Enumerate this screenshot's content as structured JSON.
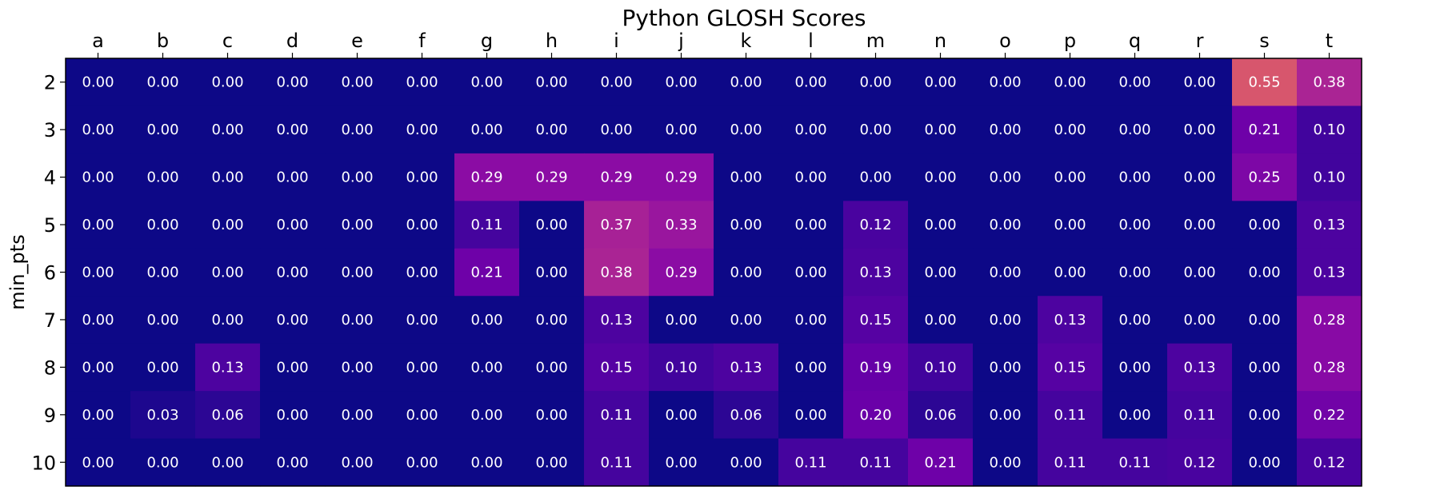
{
  "chart_data": {
    "type": "heatmap",
    "title": "Python GLOSH Scores",
    "xlabel": "",
    "ylabel": "min_pts",
    "x_ticks_position": "top",
    "columns": [
      "a",
      "b",
      "c",
      "d",
      "e",
      "f",
      "g",
      "h",
      "i",
      "j",
      "k",
      "l",
      "m",
      "n",
      "o",
      "p",
      "q",
      "r",
      "s",
      "t"
    ],
    "rows": [
      "2",
      "3",
      "4",
      "5",
      "6",
      "7",
      "8",
      "9",
      "10"
    ],
    "values": [
      [
        0.0,
        0.0,
        0.0,
        0.0,
        0.0,
        0.0,
        0.0,
        0.0,
        0.0,
        0.0,
        0.0,
        0.0,
        0.0,
        0.0,
        0.0,
        0.0,
        0.0,
        0.0,
        0.55,
        0.38
      ],
      [
        0.0,
        0.0,
        0.0,
        0.0,
        0.0,
        0.0,
        0.0,
        0.0,
        0.0,
        0.0,
        0.0,
        0.0,
        0.0,
        0.0,
        0.0,
        0.0,
        0.0,
        0.0,
        0.21,
        0.1
      ],
      [
        0.0,
        0.0,
        0.0,
        0.0,
        0.0,
        0.0,
        0.29,
        0.29,
        0.29,
        0.29,
        0.0,
        0.0,
        0.0,
        0.0,
        0.0,
        0.0,
        0.0,
        0.0,
        0.25,
        0.1
      ],
      [
        0.0,
        0.0,
        0.0,
        0.0,
        0.0,
        0.0,
        0.11,
        0.0,
        0.37,
        0.33,
        0.0,
        0.0,
        0.12,
        0.0,
        0.0,
        0.0,
        0.0,
        0.0,
        0.0,
        0.13
      ],
      [
        0.0,
        0.0,
        0.0,
        0.0,
        0.0,
        0.0,
        0.21,
        0.0,
        0.38,
        0.29,
        0.0,
        0.0,
        0.13,
        0.0,
        0.0,
        0.0,
        0.0,
        0.0,
        0.0,
        0.13
      ],
      [
        0.0,
        0.0,
        0.0,
        0.0,
        0.0,
        0.0,
        0.0,
        0.0,
        0.13,
        0.0,
        0.0,
        0.0,
        0.15,
        0.0,
        0.0,
        0.13,
        0.0,
        0.0,
        0.0,
        0.28
      ],
      [
        0.0,
        0.0,
        0.13,
        0.0,
        0.0,
        0.0,
        0.0,
        0.0,
        0.15,
        0.1,
        0.13,
        0.0,
        0.19,
        0.1,
        0.0,
        0.15,
        0.0,
        0.13,
        0.0,
        0.28
      ],
      [
        0.0,
        0.03,
        0.06,
        0.0,
        0.0,
        0.0,
        0.0,
        0.0,
        0.11,
        0.0,
        0.06,
        0.0,
        0.2,
        0.06,
        0.0,
        0.11,
        0.0,
        0.11,
        0.0,
        0.22
      ],
      [
        0.0,
        0.0,
        0.0,
        0.0,
        0.0,
        0.0,
        0.0,
        0.0,
        0.11,
        0.0,
        0.0,
        0.11,
        0.11,
        0.21,
        0.0,
        0.11,
        0.11,
        0.12,
        0.0,
        0.12
      ]
    ],
    "colormap": "plasma",
    "value_range": [
      0,
      1
    ],
    "value_format": "0.00",
    "grid": false,
    "legend": "none"
  }
}
